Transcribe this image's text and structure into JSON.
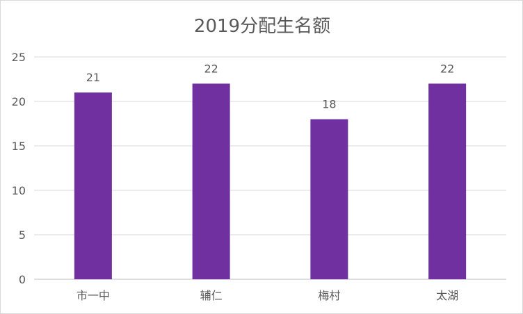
{
  "chart_data": {
    "type": "bar",
    "title": "2019分配生名额",
    "categories": [
      "市一中",
      "辅仁",
      "梅村",
      "太湖"
    ],
    "values": [
      21,
      22,
      18,
      22
    ],
    "ylim": [
      0,
      25
    ],
    "yticks": [
      0,
      5,
      10,
      15,
      20,
      25
    ],
    "xlabel": "",
    "ylabel": "",
    "grid": true,
    "data_labels": true,
    "bar_color": "#7030A0"
  }
}
